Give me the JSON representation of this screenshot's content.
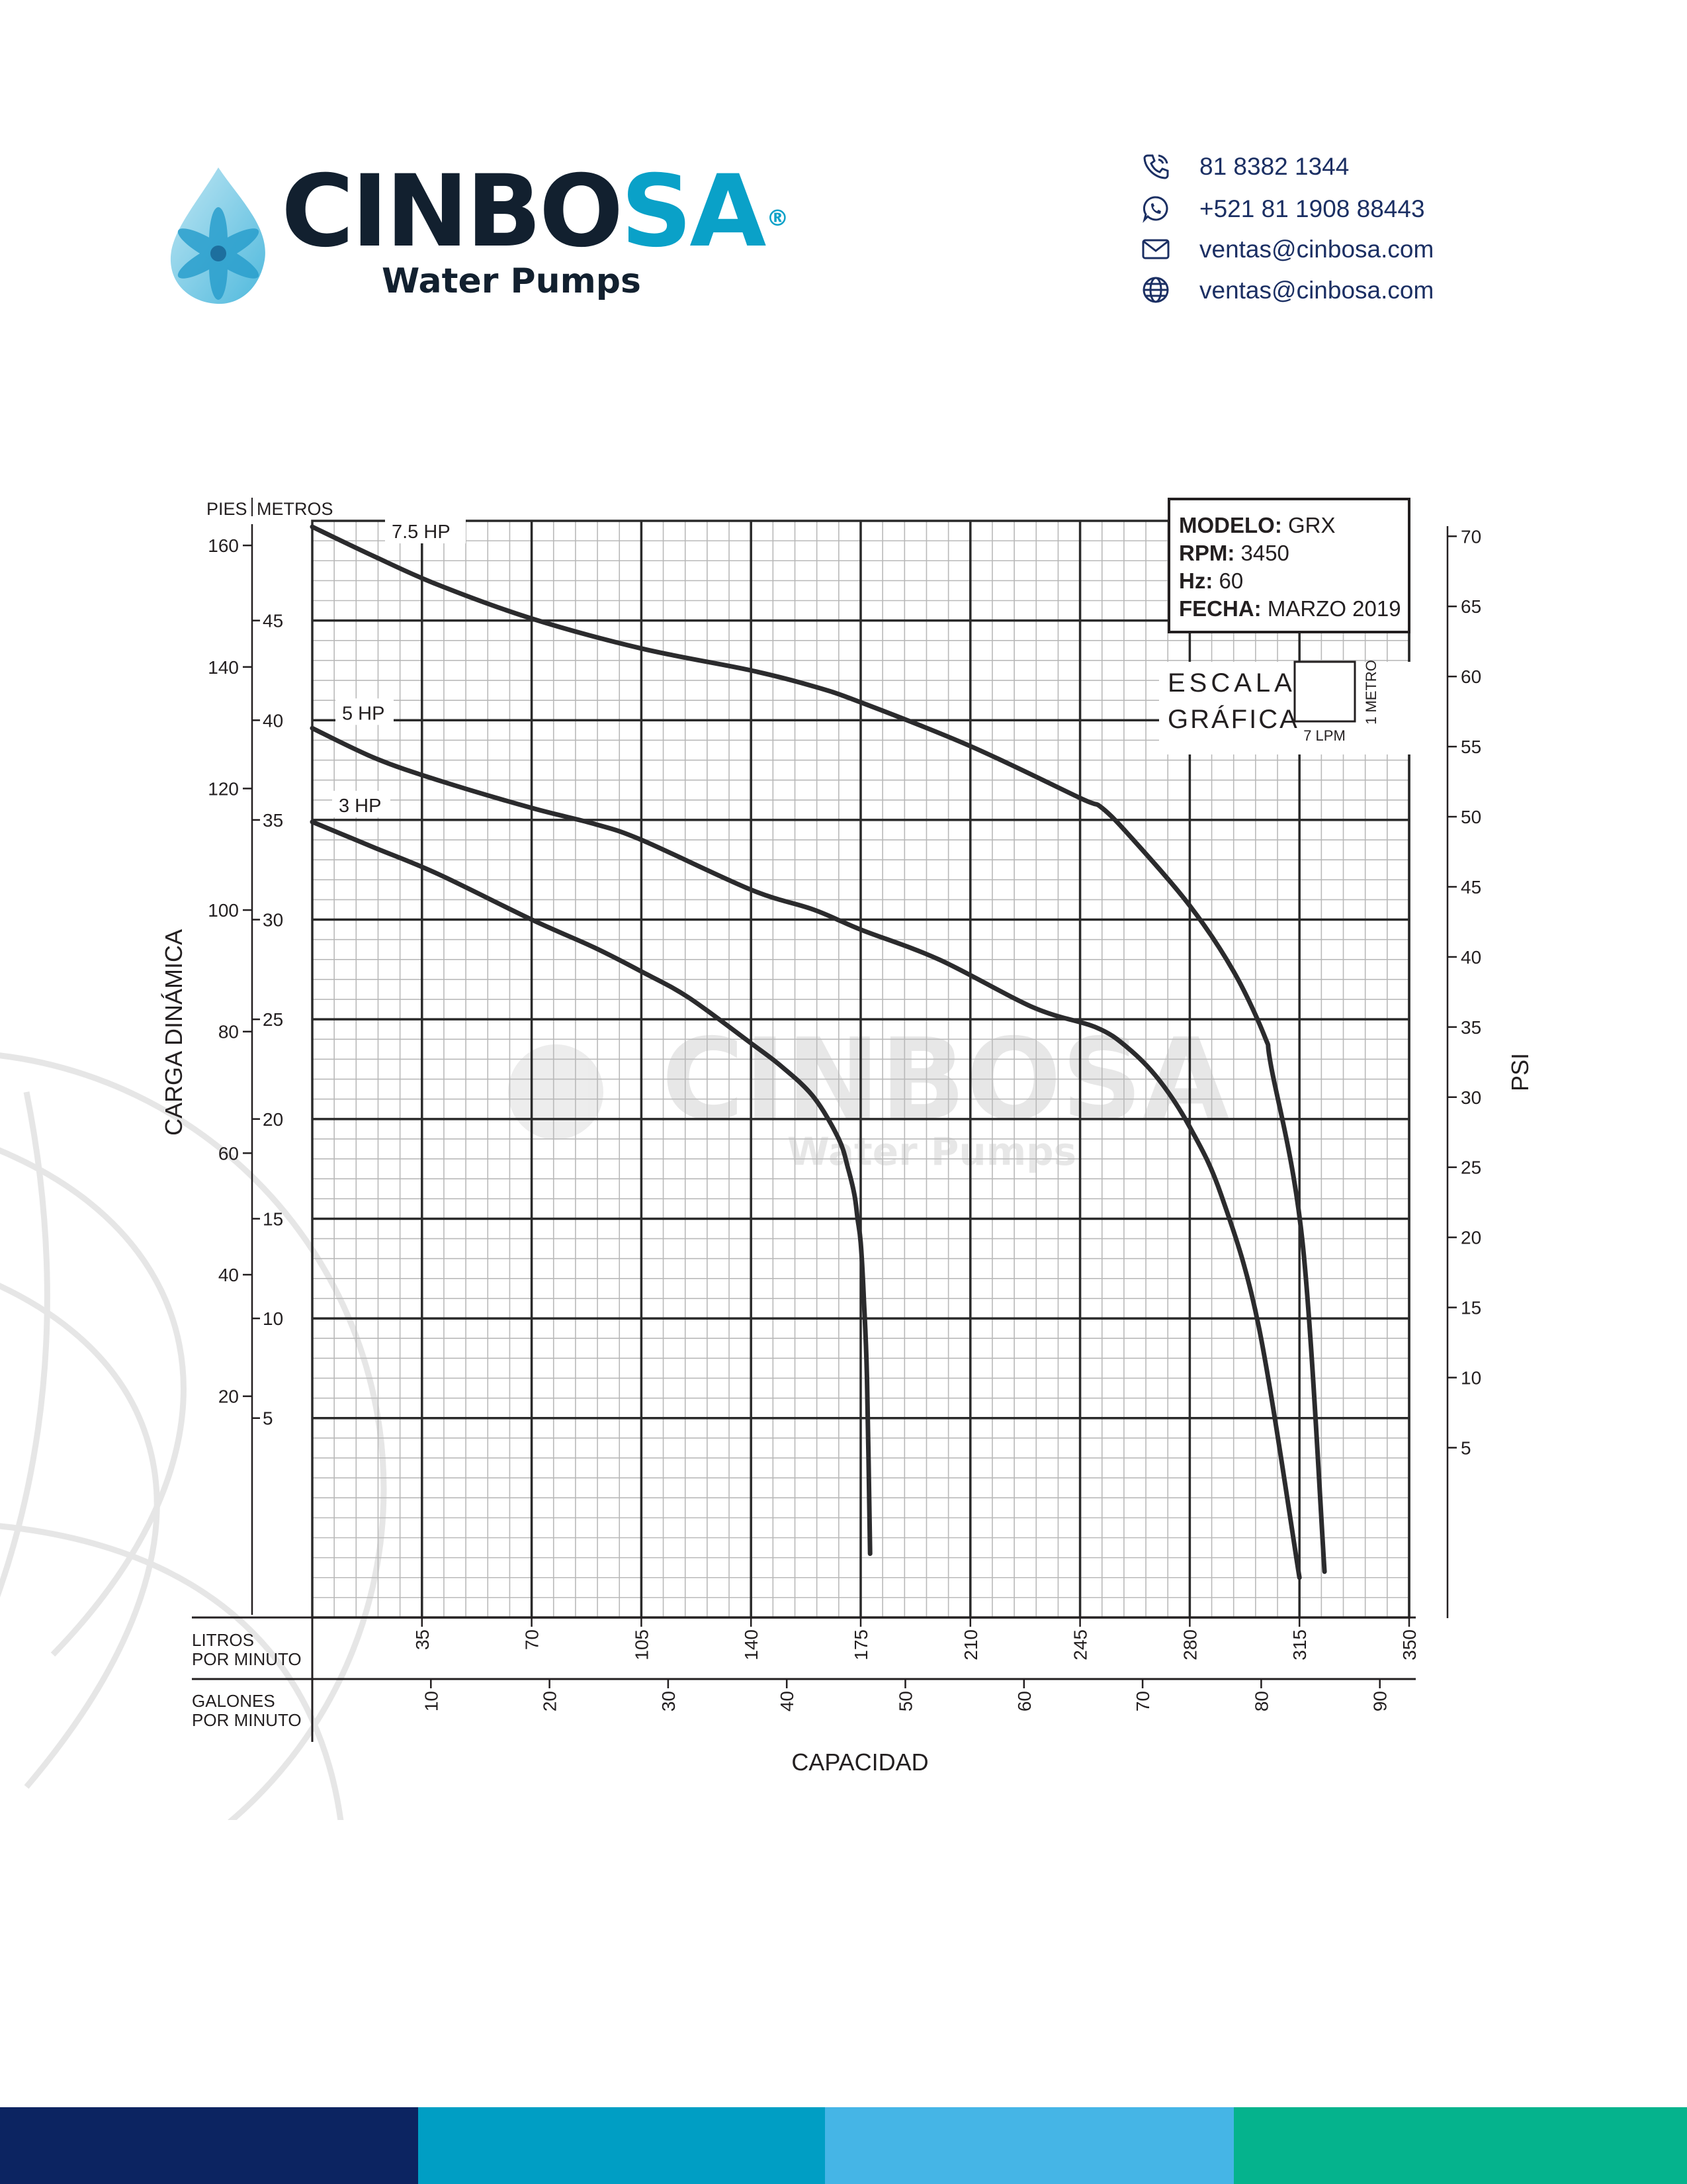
{
  "header": {
    "brand": {
      "part_dark": "CINBO",
      "part_blue": "SA",
      "registered": "®",
      "subtitle": "Water Pumps"
    },
    "contacts": [
      {
        "icon": "phone-icon",
        "text": "81 8382 1344"
      },
      {
        "icon": "whatsapp-icon",
        "text": "+521 81 1908 88443"
      },
      {
        "icon": "mail-icon",
        "text": "ventas@cinbosa.com"
      },
      {
        "icon": "globe-icon",
        "text": "ventas@cinbosa.com"
      }
    ]
  },
  "colors": {
    "dark_navy": "#0c2461",
    "brand_dark": "#12202f",
    "brand_blue": "#0aa1c8",
    "teal": "#009ec4",
    "sky": "#45b5e6",
    "green": "#05b38d",
    "curve": "#2b2b2d",
    "grid_minor": "#b9b9b9"
  },
  "chart_data": {
    "type": "line",
    "info_box": {
      "modelo_label": "MODELO:",
      "modelo": "GRX",
      "rpm_label": "RPM:",
      "rpm": "3450",
      "hz_label": "Hz:",
      "hz": "60",
      "fecha_label": "FECHA:",
      "fecha": "MARZO 2019"
    },
    "scale_legend": {
      "text_line1": "ESCALA",
      "text_line2": "GRÁFICA",
      "vertical": "1 METRO",
      "horizontal": "7 LPM"
    },
    "axis_header": {
      "pies": "PIES",
      "metros": "METROS"
    },
    "ylabel_left": "CARGA DINÁMICA",
    "ylabel_right": "PSI",
    "xlabel": "CAPACIDAD",
    "x_lpm_label": [
      "LITROS",
      "POR MINUTO"
    ],
    "x_gpm_label": [
      "GALONES",
      "POR MINUTO"
    ],
    "xlim_lpm": [
      0,
      350
    ],
    "ylim_metros": [
      -5,
      50
    ],
    "grid": true,
    "ticks": {
      "lpm": [
        35,
        70,
        105,
        140,
        175,
        210,
        245,
        280,
        315,
        350
      ],
      "gpm": [
        10,
        20,
        30,
        40,
        50,
        60,
        70,
        80,
        90
      ],
      "metros": [
        5,
        10,
        15,
        20,
        25,
        30,
        35,
        40,
        45
      ],
      "pies": [
        20,
        40,
        60,
        80,
        100,
        120,
        140,
        160
      ],
      "psi": [
        5,
        10,
        15,
        20,
        25,
        30,
        35,
        40,
        45,
        50,
        55,
        60,
        65,
        70
      ]
    },
    "series": [
      {
        "name": "7.5 HP",
        "x": [
          0,
          20,
          40,
          70,
          105,
          140,
          160,
          175,
          210,
          245,
          252,
          262,
          280,
          294,
          304,
          306,
          316,
          323
        ],
        "y": [
          49.7,
          48.2,
          46.8,
          45.1,
          43.6,
          42.5,
          41.7,
          40.9,
          38.7,
          36.1,
          35.6,
          34,
          30.7,
          27.4,
          24.1,
          22.6,
          13.8,
          -2.7
        ]
      },
      {
        "name": "5 HP",
        "x": [
          0,
          20,
          40,
          70,
          90,
          105,
          140,
          160,
          175,
          200,
          230,
          250,
          260,
          270,
          280,
          290,
          302,
          315
        ],
        "y": [
          39.6,
          38.1,
          37,
          35.6,
          34.8,
          34,
          31.5,
          30.5,
          29.5,
          28,
          25.6,
          24.6,
          23.6,
          22,
          19.6,
          16.2,
          9.6,
          -3
        ]
      },
      {
        "name": "3 HP",
        "x": [
          0,
          20,
          40,
          70,
          90,
          105,
          120,
          140,
          150,
          160,
          168,
          171,
          173,
          174,
          175,
          176,
          177,
          178
        ],
        "y": [
          34.9,
          33.6,
          32.3,
          30,
          28.6,
          27.4,
          26.1,
          23.8,
          22.6,
          21.1,
          19,
          17.5,
          16.2,
          15,
          13.8,
          11,
          7,
          -1.8
        ]
      }
    ]
  },
  "footer": {
    "colors": [
      "#0c2461",
      "#009ec4",
      "#45b5e6",
      "#05b38d"
    ]
  }
}
